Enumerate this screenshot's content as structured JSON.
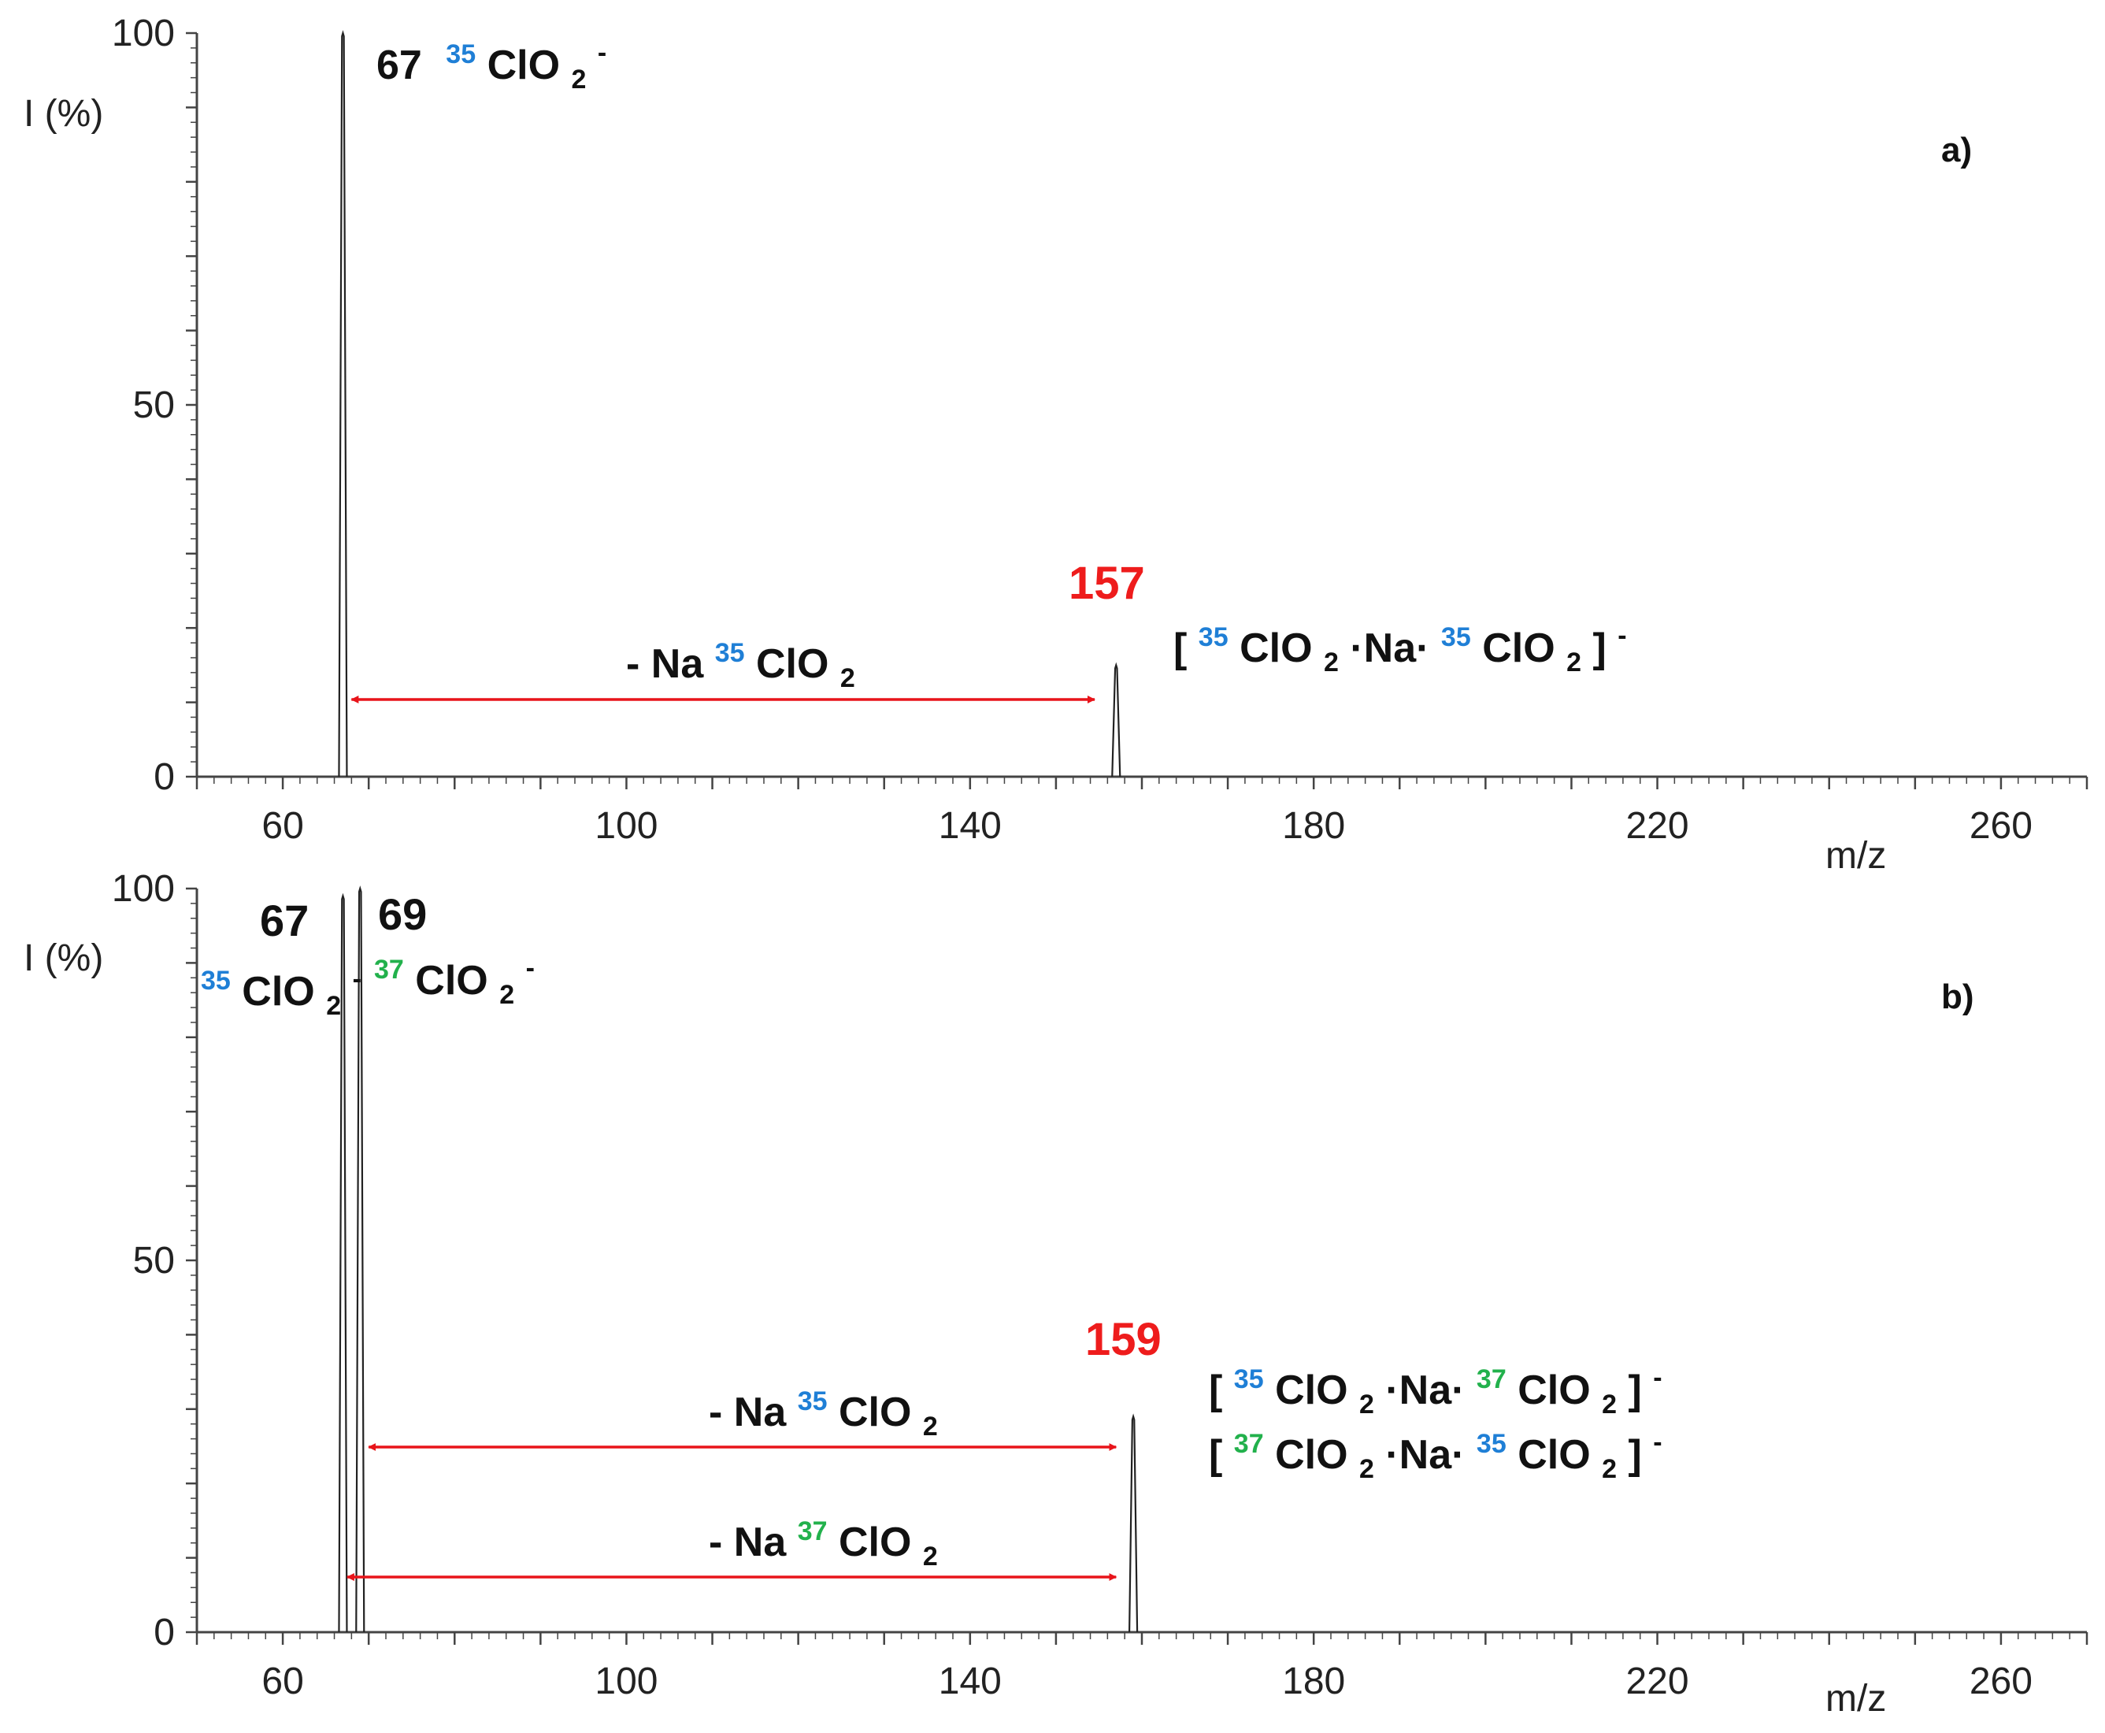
{
  "colors": {
    "iso35": "#1f7fd6",
    "iso37": "#22b14c",
    "highlight": "#ee1c1c",
    "arrow": "#e8141a",
    "axis": "#444444",
    "trace": "#222222"
  },
  "chart_data": [
    {
      "type": "line",
      "panel": "a)",
      "xlabel": "m/z",
      "ylabel": "I (%)",
      "xlim": [
        50,
        270
      ],
      "ylim": [
        0,
        100
      ],
      "x_ticks": [
        60,
        100,
        140,
        180,
        220,
        260
      ],
      "y_ticks": [
        0,
        50,
        100
      ],
      "peaks": [
        {
          "mz": 67,
          "intensity": 100
        },
        {
          "mz": 157,
          "intensity": 15
        }
      ],
      "labels": {
        "p67": {
          "num": "67",
          "iso": "35",
          "formula": "ClO",
          "sub": "2",
          "charge": "-"
        },
        "p157": {
          "num": "157"
        },
        "cluster": {
          "open": "[",
          "iso1": "35",
          "part1": "ClO",
          "sub1": "2",
          "mid": "·Na·",
          "iso2": "35",
          "part2": "ClO",
          "sub2": "2",
          "close": "]",
          "charge": "-"
        }
      },
      "losses": [
        {
          "prefix": "- Na",
          "iso": "35",
          "formula": "ClO",
          "sub": "2",
          "from_mz": 68,
          "to_mz": 154.5
        }
      ]
    },
    {
      "type": "line",
      "panel": "b)",
      "xlabel": "m/z",
      "ylabel": "I (%)",
      "xlim": [
        50,
        270
      ],
      "ylim": [
        0,
        100
      ],
      "x_ticks": [
        60,
        100,
        140,
        180,
        220,
        260
      ],
      "y_ticks": [
        0,
        50,
        100
      ],
      "peaks": [
        {
          "mz": 67,
          "intensity": 99
        },
        {
          "mz": 69,
          "intensity": 100
        },
        {
          "mz": 159,
          "intensity": 29
        }
      ],
      "labels": {
        "p67": {
          "num": "67",
          "iso": "35",
          "formula": "ClO",
          "sub": "2",
          "charge": "-"
        },
        "p69": {
          "num": "69",
          "iso": "37",
          "formula": "ClO",
          "sub": "2",
          "charge": "-"
        },
        "p159": {
          "num": "159"
        },
        "clusterA": {
          "open": "[",
          "iso1": "35",
          "part1": "ClO",
          "sub1": "2",
          "mid": "·Na·",
          "iso2": "37",
          "part2": "ClO",
          "sub2": "2",
          "close": "]",
          "charge": "-"
        },
        "clusterB": {
          "open": "[",
          "iso1": "37",
          "part1": "ClO",
          "sub1": "2",
          "mid": "·Na·",
          "iso2": "35",
          "part2": "ClO",
          "sub2": "2",
          "close": "]",
          "charge": "-"
        }
      },
      "losses": [
        {
          "prefix": "- Na",
          "iso": "35",
          "formula": "ClO",
          "sub": "2",
          "from_mz": 70,
          "to_mz": 157
        },
        {
          "prefix": "- Na",
          "iso": "37",
          "formula": "ClO",
          "sub": "2",
          "from_mz": 67.5,
          "to_mz": 157
        }
      ]
    }
  ]
}
